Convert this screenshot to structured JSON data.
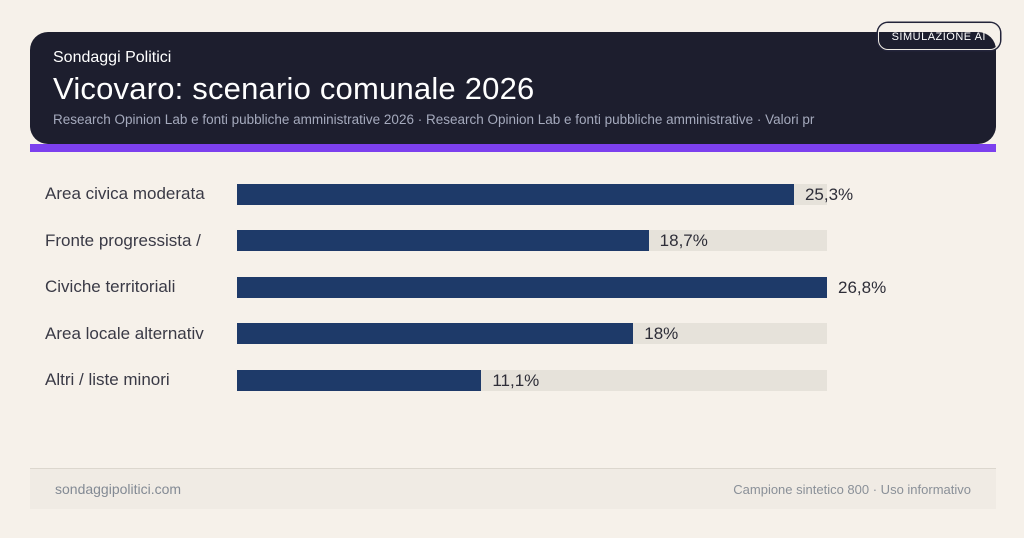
{
  "page": {
    "background_color": "#f6f1ea"
  },
  "header": {
    "brand": "Sondaggi Politici",
    "title": "Vicovaro: scenario comunale 2026",
    "subtitle": "Research Opinion Lab e fonti pubbliche amministrative 2026 · Research Opinion Lab e fonti pubbliche amministrative · Valori pr",
    "badge": "SIMULAZIONE AI",
    "card_color": "#1d1e2e",
    "accent_color": "#7c40ee"
  },
  "chart_data": {
    "type": "bar",
    "orientation": "horizontal",
    "categories": [
      "Area civica moderata",
      "Fronte progressista /",
      "Civiche territoriali",
      "Area locale alternativ",
      "Altri / liste minori"
    ],
    "values": [
      25.3,
      18.7,
      26.8,
      18,
      11.1
    ],
    "value_labels": [
      "25,3%",
      "18,7%",
      "26,8%",
      "18%",
      "11,1%"
    ],
    "unit": "%",
    "xlim": [
      0,
      26.8
    ],
    "grid": false,
    "legend": false,
    "bar_color": "#1e3a69",
    "track_color": "#e6e2da"
  },
  "footer": {
    "left": "sondaggipolitici.com",
    "right": "Campione sintetico 800 · Uso informativo"
  }
}
